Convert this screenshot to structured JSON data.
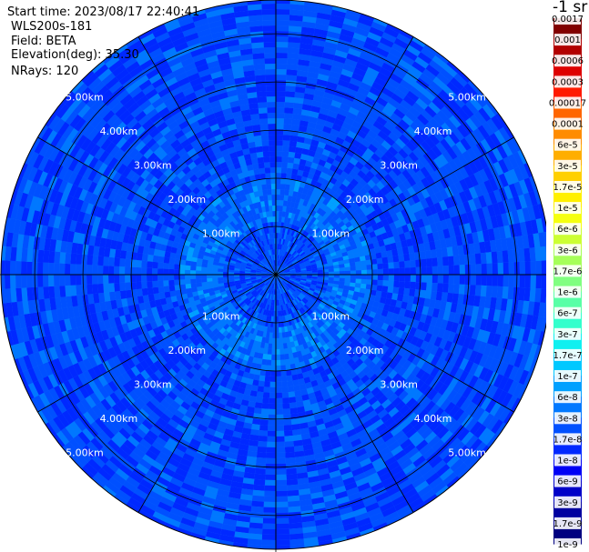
{
  "header": {
    "start_time": "Start time: 2023/08/17 22:40:41",
    "instrument": "WLS200s-181",
    "field": "Field: BETA",
    "elevation": "Elevation(deg): 35.30",
    "nrays": "NRays: 120"
  },
  "colorbar": {
    "unit_title": "-1 sr",
    "labels": [
      "0.0017",
      "0.001",
      "0.0006",
      "0.0003",
      "0.00017",
      "0.0001",
      "6e-5",
      "3e-5",
      "1.7e-5",
      "1e-5",
      "6e-6",
      "3e-6",
      "1.7e-6",
      "1e-6",
      "6e-7",
      "3e-7",
      "1.7e-7",
      "1e-7",
      "6e-8",
      "3e-8",
      "1.7e-8",
      "1e-8",
      "6e-9",
      "3e-9",
      "1.7e-9",
      "1e-9"
    ],
    "colors": [
      "#820000",
      "#b20000",
      "#de0000",
      "#ff1a00",
      "#ff6600",
      "#ff8c00",
      "#ffae00",
      "#ffd000",
      "#fff000",
      "#f5ff10",
      "#ccff33",
      "#a6ff59",
      "#80ff80",
      "#59ffa6",
      "#33ffcc",
      "#10f0f0",
      "#00c8ff",
      "#00a0ff",
      "#0078ff",
      "#0050ff",
      "#0028ff",
      "#0000f5",
      "#0000c8",
      "#0000a0",
      "#000080"
    ]
  },
  "chart_data": {
    "type": "heatmap",
    "projection": "polar PPI",
    "field": "BETA",
    "elevation_deg": 35.3,
    "n_rays": 120,
    "range_rings_km": [
      1.0,
      2.0,
      3.0,
      4.0,
      5.0
    ],
    "ring_labels": [
      "1.00km",
      "2.00km",
      "3.00km",
      "4.00km",
      "5.00km"
    ],
    "max_range_km": 5.7,
    "spokes_deg": [
      0,
      30,
      60,
      90,
      120,
      150,
      180,
      210,
      240,
      270,
      300,
      330
    ],
    "color_scale": "log",
    "value_range": [
      1e-09,
      0.0017
    ],
    "typical_values": {
      "near_range_0_to_1km": 1.7e-08,
      "range_1_to_2km": 3e-08,
      "range_2_to_6km": 1.7e-08
    }
  }
}
